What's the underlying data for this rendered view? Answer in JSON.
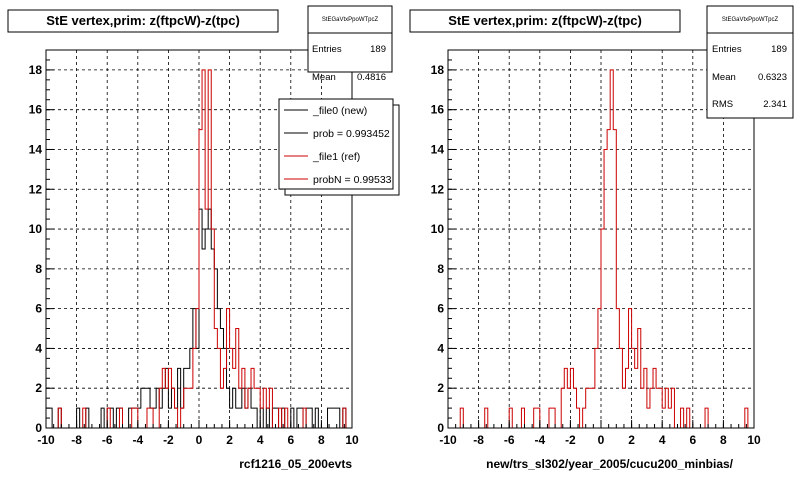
{
  "chart_data": [
    {
      "type": "histogram",
      "title": "StE  vertex,prim: z(ftpcW)-z(tpc)",
      "xlabel": "rcf1216_05_200evts",
      "xlim": [
        -10,
        10
      ],
      "ylim": [
        0,
        19
      ],
      "xticks": [
        -10,
        -8,
        -6,
        -4,
        -2,
        0,
        2,
        4,
        6,
        8,
        10
      ],
      "yticks": [
        0,
        2,
        4,
        6,
        8,
        10,
        12,
        14,
        16,
        18
      ],
      "grid": true,
      "stats": {
        "name": "StEGaVtxPpoWTpcZ",
        "entries_label": "Entries",
        "entries": "189",
        "mean_label": "Mean",
        "mean": "0.4816"
      },
      "legend": [
        {
          "label": "_file0 (new)",
          "color": "#000000"
        },
        {
          "label": "prob = 0.993452",
          "color": "#000000"
        },
        {
          "label": "_file1 (ref)",
          "color": "#cc0000"
        },
        {
          "label": "probN = 0.99533",
          "color": "#cc0000"
        }
      ],
      "bin_width": 0.2,
      "series": [
        {
          "name": "_file0 (new)",
          "color": "#000000",
          "bins": [
            {
              "x": -10.0,
              "y": 1
            },
            {
              "x": -9.8,
              "y": 1
            },
            {
              "x": -9.6,
              "y": 0
            },
            {
              "x": -9.4,
              "y": 0
            },
            {
              "x": -9.2,
              "y": 1
            },
            {
              "x": -8.0,
              "y": 1
            },
            {
              "x": -7.4,
              "y": 1
            },
            {
              "x": -6.4,
              "y": 1
            },
            {
              "x": -6.0,
              "y": 1
            },
            {
              "x": -5.8,
              "y": 1
            },
            {
              "x": -5.4,
              "y": 1
            },
            {
              "x": -5.2,
              "y": 1
            },
            {
              "x": -4.6,
              "y": 1
            },
            {
              "x": -4.4,
              "y": 1
            },
            {
              "x": -4.2,
              "y": 1
            },
            {
              "x": -4.0,
              "y": 1
            },
            {
              "x": -3.8,
              "y": 2
            },
            {
              "x": -3.6,
              "y": 2
            },
            {
              "x": -3.4,
              "y": 2
            },
            {
              "x": -3.2,
              "y": 1
            },
            {
              "x": -3.0,
              "y": 1
            },
            {
              "x": -2.8,
              "y": 2
            },
            {
              "x": -2.6,
              "y": 1
            },
            {
              "x": -2.4,
              "y": 2
            },
            {
              "x": -2.2,
              "y": 3
            },
            {
              "x": -2.0,
              "y": 1
            },
            {
              "x": -1.8,
              "y": 2
            },
            {
              "x": -1.6,
              "y": 1
            },
            {
              "x": -1.4,
              "y": 3
            },
            {
              "x": -1.2,
              "y": 1
            },
            {
              "x": -1.0,
              "y": 3
            },
            {
              "x": -0.8,
              "y": 3
            },
            {
              "x": -0.6,
              "y": 4
            },
            {
              "x": -0.4,
              "y": 6
            },
            {
              "x": -0.2,
              "y": 4
            },
            {
              "x": 0.0,
              "y": 11
            },
            {
              "x": 0.2,
              "y": 9
            },
            {
              "x": 0.4,
              "y": 10
            },
            {
              "x": 0.6,
              "y": 11
            },
            {
              "x": 0.8,
              "y": 9
            },
            {
              "x": 1.0,
              "y": 8
            },
            {
              "x": 1.2,
              "y": 6
            },
            {
              "x": 1.4,
              "y": 5
            },
            {
              "x": 1.6,
              "y": 4
            },
            {
              "x": 1.8,
              "y": 2
            },
            {
              "x": 2.0,
              "y": 1
            },
            {
              "x": 2.2,
              "y": 2
            },
            {
              "x": 2.4,
              "y": 1
            },
            {
              "x": 2.6,
              "y": 1
            },
            {
              "x": 2.8,
              "y": 2
            },
            {
              "x": 3.0,
              "y": 1
            },
            {
              "x": 3.2,
              "y": 2
            },
            {
              "x": 3.4,
              "y": 1
            },
            {
              "x": 3.6,
              "y": 1
            },
            {
              "x": 4.0,
              "y": 1
            },
            {
              "x": 4.4,
              "y": 1
            },
            {
              "x": 4.8,
              "y": 1
            },
            {
              "x": 5.0,
              "y": 1
            },
            {
              "x": 5.4,
              "y": 1
            },
            {
              "x": 6.0,
              "y": 1
            },
            {
              "x": 6.4,
              "y": 1
            },
            {
              "x": 6.6,
              "y": 1
            },
            {
              "x": 7.0,
              "y": 1
            },
            {
              "x": 7.2,
              "y": 1
            },
            {
              "x": 7.6,
              "y": 1
            },
            {
              "x": 8.4,
              "y": 1
            },
            {
              "x": 8.6,
              "y": 1
            },
            {
              "x": 8.8,
              "y": 1
            },
            {
              "x": 9.0,
              "y": 1
            },
            {
              "x": 9.4,
              "y": 1
            }
          ]
        },
        {
          "name": "_file1 (ref)",
          "color": "#cc0000",
          "bins": [
            {
              "x": -9.2,
              "y": 1
            },
            {
              "x": -7.6,
              "y": 1
            },
            {
              "x": -6.0,
              "y": 1
            },
            {
              "x": -5.2,
              "y": 1
            },
            {
              "x": -4.4,
              "y": 1
            },
            {
              "x": -4.2,
              "y": 1
            },
            {
              "x": -3.4,
              "y": 1
            },
            {
              "x": -3.2,
              "y": 1
            },
            {
              "x": -2.6,
              "y": 2
            },
            {
              "x": -2.4,
              "y": 3
            },
            {
              "x": -2.2,
              "y": 2
            },
            {
              "x": -2.0,
              "y": 3
            },
            {
              "x": -1.8,
              "y": 2
            },
            {
              "x": -1.6,
              "y": 1
            },
            {
              "x": -1.2,
              "y": 1
            },
            {
              "x": -1.0,
              "y": 2
            },
            {
              "x": -0.8,
              "y": 2
            },
            {
              "x": -0.6,
              "y": 2
            },
            {
              "x": -0.4,
              "y": 4
            },
            {
              "x": -0.2,
              "y": 6
            },
            {
              "x": 0.0,
              "y": 15
            },
            {
              "x": 0.2,
              "y": 18
            },
            {
              "x": 0.4,
              "y": 11
            },
            {
              "x": 0.6,
              "y": 18
            },
            {
              "x": 0.8,
              "y": 10
            },
            {
              "x": 1.0,
              "y": 5
            },
            {
              "x": 1.2,
              "y": 4
            },
            {
              "x": 1.4,
              "y": 2
            },
            {
              "x": 1.6,
              "y": 3
            },
            {
              "x": 1.8,
              "y": 6
            },
            {
              "x": 2.0,
              "y": 4
            },
            {
              "x": 2.2,
              "y": 3
            },
            {
              "x": 2.4,
              "y": 5
            },
            {
              "x": 2.6,
              "y": 2
            },
            {
              "x": 2.8,
              "y": 3
            },
            {
              "x": 3.0,
              "y": 1
            },
            {
              "x": 3.2,
              "y": 2
            },
            {
              "x": 3.4,
              "y": 3
            },
            {
              "x": 3.6,
              "y": 2
            },
            {
              "x": 3.8,
              "y": 2
            },
            {
              "x": 4.0,
              "y": 1
            },
            {
              "x": 4.2,
              "y": 2
            },
            {
              "x": 4.4,
              "y": 1
            },
            {
              "x": 4.6,
              "y": 2
            },
            {
              "x": 5.2,
              "y": 1
            },
            {
              "x": 5.6,
              "y": 1
            },
            {
              "x": 6.8,
              "y": 1
            },
            {
              "x": 9.4,
              "y": 1
            }
          ]
        }
      ]
    },
    {
      "type": "histogram",
      "title": "StE  vertex,prim: z(ftpcW)-z(tpc)",
      "xlabel": "new/trs_sl302/year_2005/cucu200_minbias/",
      "xlim": [
        -10,
        10
      ],
      "ylim": [
        0,
        19
      ],
      "xticks": [
        -10,
        -8,
        -6,
        -4,
        -2,
        0,
        2,
        4,
        6,
        8,
        10
      ],
      "yticks": [
        0,
        2,
        4,
        6,
        8,
        10,
        12,
        14,
        16,
        18
      ],
      "grid": true,
      "stats": {
        "name": "StEGaVtxPpoWTpcZ",
        "entries_label": "Entries",
        "entries": "189",
        "mean_label": "Mean",
        "mean": "0.6323",
        "rms_label": "RMS",
        "rms": "2.341"
      },
      "bin_width": 0.2,
      "series": [
        {
          "name": "_file1 (ref)",
          "color": "#cc0000",
          "bins": [
            {
              "x": -9.2,
              "y": 1
            },
            {
              "x": -7.6,
              "y": 1
            },
            {
              "x": -6.0,
              "y": 1
            },
            {
              "x": -5.2,
              "y": 1
            },
            {
              "x": -4.4,
              "y": 1
            },
            {
              "x": -4.2,
              "y": 1
            },
            {
              "x": -3.4,
              "y": 1
            },
            {
              "x": -3.2,
              "y": 1
            },
            {
              "x": -2.6,
              "y": 2
            },
            {
              "x": -2.4,
              "y": 3
            },
            {
              "x": -2.2,
              "y": 2
            },
            {
              "x": -2.0,
              "y": 3
            },
            {
              "x": -1.8,
              "y": 2
            },
            {
              "x": -1.6,
              "y": 1
            },
            {
              "x": -1.2,
              "y": 1
            },
            {
              "x": -1.0,
              "y": 2
            },
            {
              "x": -0.8,
              "y": 2
            },
            {
              "x": -0.6,
              "y": 2
            },
            {
              "x": -0.4,
              "y": 4
            },
            {
              "x": -0.2,
              "y": 6
            },
            {
              "x": 0.0,
              "y": 10
            },
            {
              "x": 0.2,
              "y": 14
            },
            {
              "x": 0.4,
              "y": 15
            },
            {
              "x": 0.6,
              "y": 18
            },
            {
              "x": 0.8,
              "y": 15
            },
            {
              "x": 1.0,
              "y": 6
            },
            {
              "x": 1.2,
              "y": 4
            },
            {
              "x": 1.4,
              "y": 2
            },
            {
              "x": 1.6,
              "y": 3
            },
            {
              "x": 1.8,
              "y": 6
            },
            {
              "x": 2.0,
              "y": 4
            },
            {
              "x": 2.2,
              "y": 3
            },
            {
              "x": 2.4,
              "y": 5
            },
            {
              "x": 2.6,
              "y": 2
            },
            {
              "x": 2.8,
              "y": 3
            },
            {
              "x": 3.0,
              "y": 1
            },
            {
              "x": 3.2,
              "y": 2
            },
            {
              "x": 3.4,
              "y": 3
            },
            {
              "x": 3.6,
              "y": 2
            },
            {
              "x": 3.8,
              "y": 2
            },
            {
              "x": 4.0,
              "y": 1
            },
            {
              "x": 4.2,
              "y": 2
            },
            {
              "x": 4.4,
              "y": 1
            },
            {
              "x": 4.6,
              "y": 2
            },
            {
              "x": 5.2,
              "y": 1
            },
            {
              "x": 5.6,
              "y": 1
            },
            {
              "x": 6.8,
              "y": 1
            },
            {
              "x": 9.4,
              "y": 1
            }
          ]
        }
      ]
    }
  ]
}
